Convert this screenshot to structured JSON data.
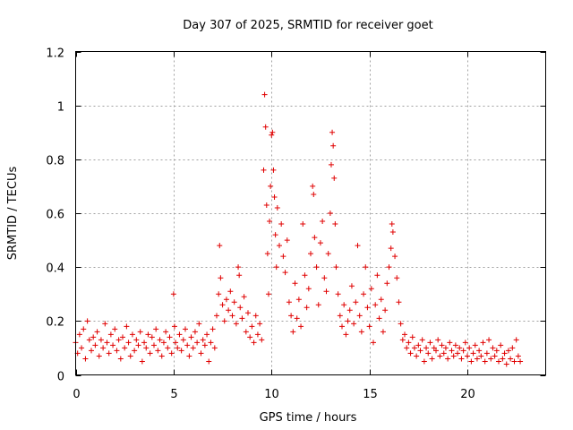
{
  "chart_data": {
    "type": "scatter",
    "title": "Day 307 of 2025, SRMTID for receiver goet",
    "xlabel": "GPS time / hours",
    "ylabel": "SRMTID / TECUs",
    "xlim": [
      0,
      24
    ],
    "ylim": [
      0,
      1.2
    ],
    "x_ticks": [
      0,
      5,
      10,
      15,
      20
    ],
    "x_tick_labels": [
      "0",
      "5",
      "10",
      "15",
      "20"
    ],
    "y_ticks": [
      0,
      0.2,
      0.4,
      0.6,
      0.8,
      1.0,
      1.2
    ],
    "y_tick_labels": [
      "0",
      "0.2",
      "0.4",
      "0.6",
      "0.8",
      "1",
      "1.2"
    ],
    "grid": true,
    "marker": "+",
    "color": "#e00000",
    "series": [
      {
        "name": "SRMTID",
        "points": [
          [
            0.0,
            0.12
          ],
          [
            0.1,
            0.08
          ],
          [
            0.2,
            0.15
          ],
          [
            0.3,
            0.1
          ],
          [
            0.4,
            0.17
          ],
          [
            0.5,
            0.06
          ],
          [
            0.6,
            0.2
          ],
          [
            0.7,
            0.13
          ],
          [
            0.8,
            0.09
          ],
          [
            0.9,
            0.14
          ],
          [
            1.0,
            0.11
          ],
          [
            1.1,
            0.16
          ],
          [
            1.2,
            0.07
          ],
          [
            1.3,
            0.13
          ],
          [
            1.4,
            0.1
          ],
          [
            1.5,
            0.19
          ],
          [
            1.6,
            0.12
          ],
          [
            1.7,
            0.08
          ],
          [
            1.8,
            0.15
          ],
          [
            1.9,
            0.11
          ],
          [
            2.0,
            0.17
          ],
          [
            2.1,
            0.09
          ],
          [
            2.2,
            0.13
          ],
          [
            2.3,
            0.06
          ],
          [
            2.4,
            0.14
          ],
          [
            2.5,
            0.1
          ],
          [
            2.6,
            0.18
          ],
          [
            2.7,
            0.12
          ],
          [
            2.8,
            0.07
          ],
          [
            2.9,
            0.15
          ],
          [
            3.0,
            0.09
          ],
          [
            3.1,
            0.13
          ],
          [
            3.2,
            0.11
          ],
          [
            3.3,
            0.16
          ],
          [
            3.4,
            0.05
          ],
          [
            3.5,
            0.12
          ],
          [
            3.6,
            0.1
          ],
          [
            3.7,
            0.15
          ],
          [
            3.8,
            0.08
          ],
          [
            3.9,
            0.14
          ],
          [
            4.0,
            0.11
          ],
          [
            4.1,
            0.17
          ],
          [
            4.2,
            0.09
          ],
          [
            4.3,
            0.13
          ],
          [
            4.4,
            0.07
          ],
          [
            4.5,
            0.12
          ],
          [
            4.6,
            0.16
          ],
          [
            4.7,
            0.1
          ],
          [
            4.8,
            0.14
          ],
          [
            4.9,
            0.08
          ],
          [
            5.0,
            0.3
          ],
          [
            5.05,
            0.18
          ],
          [
            5.1,
            0.12
          ],
          [
            5.2,
            0.1
          ],
          [
            5.3,
            0.15
          ],
          [
            5.4,
            0.09
          ],
          [
            5.5,
            0.13
          ],
          [
            5.6,
            0.17
          ],
          [
            5.7,
            0.11
          ],
          [
            5.8,
            0.07
          ],
          [
            5.9,
            0.14
          ],
          [
            6.0,
            0.1
          ],
          [
            6.1,
            0.16
          ],
          [
            6.2,
            0.12
          ],
          [
            6.3,
            0.19
          ],
          [
            6.4,
            0.08
          ],
          [
            6.5,
            0.13
          ],
          [
            6.6,
            0.11
          ],
          [
            6.7,
            0.15
          ],
          [
            6.8,
            0.05
          ],
          [
            6.9,
            0.12
          ],
          [
            7.0,
            0.17
          ],
          [
            7.1,
            0.1
          ],
          [
            7.2,
            0.22
          ],
          [
            7.3,
            0.3
          ],
          [
            7.35,
            0.48
          ],
          [
            7.4,
            0.36
          ],
          [
            7.5,
            0.26
          ],
          [
            7.6,
            0.2
          ],
          [
            7.7,
            0.28
          ],
          [
            7.8,
            0.24
          ],
          [
            7.9,
            0.31
          ],
          [
            8.0,
            0.22
          ],
          [
            8.1,
            0.27
          ],
          [
            8.2,
            0.19
          ],
          [
            8.3,
            0.4
          ],
          [
            8.35,
            0.37
          ],
          [
            8.4,
            0.25
          ],
          [
            8.5,
            0.21
          ],
          [
            8.6,
            0.29
          ],
          [
            8.7,
            0.16
          ],
          [
            8.8,
            0.23
          ],
          [
            8.9,
            0.14
          ],
          [
            9.0,
            0.18
          ],
          [
            9.1,
            0.12
          ],
          [
            9.2,
            0.22
          ],
          [
            9.3,
            0.15
          ],
          [
            9.4,
            0.19
          ],
          [
            9.5,
            0.13
          ],
          [
            9.6,
            0.76
          ],
          [
            9.65,
            1.04
          ],
          [
            9.7,
            0.92
          ],
          [
            9.75,
            0.63
          ],
          [
            9.8,
            0.45
          ],
          [
            9.85,
            0.3
          ],
          [
            9.9,
            0.57
          ],
          [
            9.95,
            0.7
          ],
          [
            10.0,
            0.89
          ],
          [
            10.05,
            0.9
          ],
          [
            10.1,
            0.76
          ],
          [
            10.15,
            0.66
          ],
          [
            10.2,
            0.52
          ],
          [
            10.25,
            0.4
          ],
          [
            10.3,
            0.62
          ],
          [
            10.4,
            0.48
          ],
          [
            10.5,
            0.56
          ],
          [
            10.6,
            0.44
          ],
          [
            10.7,
            0.38
          ],
          [
            10.8,
            0.5
          ],
          [
            10.9,
            0.27
          ],
          [
            11.0,
            0.22
          ],
          [
            11.1,
            0.16
          ],
          [
            11.2,
            0.34
          ],
          [
            11.3,
            0.21
          ],
          [
            11.4,
            0.28
          ],
          [
            11.5,
            0.18
          ],
          [
            11.6,
            0.56
          ],
          [
            11.7,
            0.37
          ],
          [
            11.8,
            0.25
          ],
          [
            11.9,
            0.32
          ],
          [
            12.0,
            0.45
          ],
          [
            12.1,
            0.7
          ],
          [
            12.15,
            0.67
          ],
          [
            12.2,
            0.51
          ],
          [
            12.3,
            0.4
          ],
          [
            12.4,
            0.26
          ],
          [
            12.5,
            0.49
          ],
          [
            12.6,
            0.57
          ],
          [
            12.7,
            0.36
          ],
          [
            12.8,
            0.31
          ],
          [
            12.9,
            0.45
          ],
          [
            13.0,
            0.6
          ],
          [
            13.05,
            0.78
          ],
          [
            13.1,
            0.9
          ],
          [
            13.15,
            0.85
          ],
          [
            13.2,
            0.73
          ],
          [
            13.25,
            0.56
          ],
          [
            13.3,
            0.4
          ],
          [
            13.4,
            0.3
          ],
          [
            13.5,
            0.22
          ],
          [
            13.6,
            0.18
          ],
          [
            13.7,
            0.26
          ],
          [
            13.8,
            0.15
          ],
          [
            13.9,
            0.2
          ],
          [
            14.0,
            0.24
          ],
          [
            14.1,
            0.33
          ],
          [
            14.2,
            0.19
          ],
          [
            14.3,
            0.27
          ],
          [
            14.4,
            0.48
          ],
          [
            14.5,
            0.22
          ],
          [
            14.6,
            0.16
          ],
          [
            14.7,
            0.3
          ],
          [
            14.8,
            0.4
          ],
          [
            14.9,
            0.25
          ],
          [
            15.0,
            0.18
          ],
          [
            15.1,
            0.32
          ],
          [
            15.2,
            0.12
          ],
          [
            15.3,
            0.26
          ],
          [
            15.4,
            0.37
          ],
          [
            15.5,
            0.21
          ],
          [
            15.6,
            0.28
          ],
          [
            15.7,
            0.16
          ],
          [
            15.8,
            0.24
          ],
          [
            15.9,
            0.34
          ],
          [
            16.0,
            0.4
          ],
          [
            16.1,
            0.47
          ],
          [
            16.15,
            0.56
          ],
          [
            16.2,
            0.53
          ],
          [
            16.3,
            0.44
          ],
          [
            16.4,
            0.36
          ],
          [
            16.5,
            0.27
          ],
          [
            16.6,
            0.19
          ],
          [
            16.7,
            0.13
          ],
          [
            16.8,
            0.15
          ],
          [
            16.9,
            0.1
          ],
          [
            17.0,
            0.12
          ],
          [
            17.1,
            0.08
          ],
          [
            17.2,
            0.14
          ],
          [
            17.3,
            0.1
          ],
          [
            17.4,
            0.07
          ],
          [
            17.5,
            0.11
          ],
          [
            17.6,
            0.09
          ],
          [
            17.7,
            0.13
          ],
          [
            17.8,
            0.05
          ],
          [
            17.9,
            0.1
          ],
          [
            18.0,
            0.08
          ],
          [
            18.1,
            0.12
          ],
          [
            18.2,
            0.06
          ],
          [
            18.3,
            0.1
          ],
          [
            18.4,
            0.09
          ],
          [
            18.5,
            0.13
          ],
          [
            18.6,
            0.07
          ],
          [
            18.7,
            0.11
          ],
          [
            18.8,
            0.08
          ],
          [
            18.9,
            0.1
          ],
          [
            19.0,
            0.06
          ],
          [
            19.1,
            0.12
          ],
          [
            19.2,
            0.09
          ],
          [
            19.3,
            0.07
          ],
          [
            19.4,
            0.11
          ],
          [
            19.5,
            0.08
          ],
          [
            19.6,
            0.1
          ],
          [
            19.7,
            0.06
          ],
          [
            19.8,
            0.09
          ],
          [
            19.9,
            0.12
          ],
          [
            20.0,
            0.07
          ],
          [
            20.1,
            0.1
          ],
          [
            20.2,
            0.05
          ],
          [
            20.3,
            0.08
          ],
          [
            20.4,
            0.11
          ],
          [
            20.5,
            0.06
          ],
          [
            20.6,
            0.09
          ],
          [
            20.7,
            0.07
          ],
          [
            20.8,
            0.12
          ],
          [
            20.9,
            0.05
          ],
          [
            21.0,
            0.08
          ],
          [
            21.1,
            0.13
          ],
          [
            21.2,
            0.06
          ],
          [
            21.3,
            0.1
          ],
          [
            21.4,
            0.07
          ],
          [
            21.5,
            0.09
          ],
          [
            21.6,
            0.05
          ],
          [
            21.7,
            0.11
          ],
          [
            21.8,
            0.06
          ],
          [
            21.9,
            0.08
          ],
          [
            22.0,
            0.04
          ],
          [
            22.1,
            0.09
          ],
          [
            22.2,
            0.06
          ],
          [
            22.3,
            0.1
          ],
          [
            22.4,
            0.05
          ],
          [
            22.5,
            0.13
          ],
          [
            22.6,
            0.07
          ],
          [
            22.7,
            0.05
          ]
        ]
      }
    ]
  }
}
